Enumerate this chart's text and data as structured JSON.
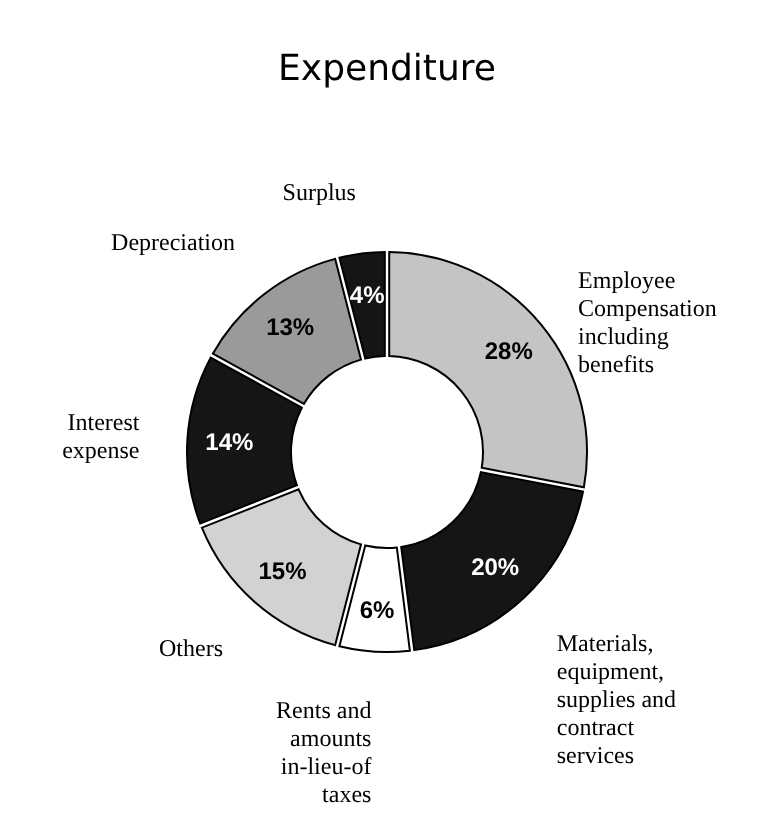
{
  "chart_data": {
    "type": "donut",
    "title": "Expenditure",
    "categories": [
      "Employee Compensation including benefits",
      "Materials, equipment, supplies and contract services",
      "Rents and amounts in-lieu-of taxes",
      "Others",
      "Interest expense",
      "Depreciation",
      "Surplus"
    ],
    "values": [
      28,
      20,
      6,
      15,
      14,
      13,
      4
    ],
    "value_labels": [
      "28%",
      "20%",
      "6%",
      "15%",
      "14%",
      "13%",
      "4%"
    ],
    "colors": [
      "#c4c4c4",
      "#151515",
      "#ffffff",
      "#d2d2d2",
      "#151515",
      "#9a9a9a",
      "#151515"
    ]
  }
}
